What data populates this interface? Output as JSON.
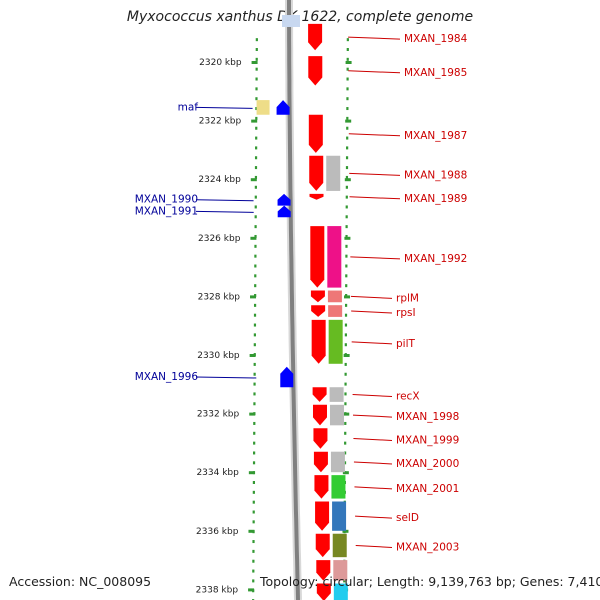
{
  "title": "Myxococcus xanthus DK 1622, complete genome",
  "footer": {
    "accession": "Accession: NC_008095",
    "topology": "Topology: circular; Length: 9,139,763 bp; Genes: 7,410"
  },
  "colors": {
    "backbone": "#808080",
    "ruler": "#339933",
    "reverse_gene": "#0000ff",
    "forward_gene": "#ff0000",
    "reverse_label": "#000099",
    "forward_label": "#cc0000"
  },
  "scale": {
    "unit": "kbp",
    "ticks": [
      2320,
      2322,
      2324,
      2326,
      2328,
      2330,
      2332,
      2334,
      2336,
      2338
    ],
    "tick_labels": [
      "2320 kbp",
      "2322 kbp",
      "2324 kbp",
      "2326 kbp",
      "2328 kbp",
      "2330 kbp",
      "2332 kbp",
      "2334 kbp",
      "2336 kbp",
      "2338 kbp"
    ]
  },
  "forward_genes": [
    {
      "label": "MXAN_1984",
      "start": 2318.7,
      "end": 2319.6,
      "cog_color": null
    },
    {
      "label": "MXAN_1985",
      "start": 2319.8,
      "end": 2320.8,
      "cog_color": null
    },
    {
      "label": "MXAN_1987",
      "start": 2321.8,
      "end": 2323.1,
      "cog_color": null
    },
    {
      "label": "MXAN_1988",
      "start": 2323.2,
      "end": 2324.4,
      "cog_color": "#bbbbbb"
    },
    {
      "label": "MXAN_1989",
      "start": 2324.5,
      "end": 2324.7,
      "cog_color": null
    },
    {
      "label": "MXAN_1992",
      "start": 2325.6,
      "end": 2327.7,
      "cog_color": "#ee1188"
    },
    {
      "label": "rplM",
      "start": 2327.8,
      "end": 2328.2,
      "cog_color": "#ee7777"
    },
    {
      "label": "rpsI",
      "start": 2328.3,
      "end": 2328.7,
      "cog_color": "#ee7777"
    },
    {
      "label": "pilT",
      "start": 2328.8,
      "end": 2330.3,
      "cog_color": "#66bb22"
    },
    {
      "label": "recX",
      "start": 2331.1,
      "end": 2331.6,
      "cog_color": "#bbbbbb"
    },
    {
      "label": "MXAN_1998",
      "start": 2331.7,
      "end": 2332.4,
      "cog_color": "#bbbbbb"
    },
    {
      "label": "MXAN_1999",
      "start": 2332.5,
      "end": 2333.2,
      "cog_color": null
    },
    {
      "label": "MXAN_2000",
      "start": 2333.3,
      "end": 2334.0,
      "cog_color": "#bbbbbb"
    },
    {
      "label": "MXAN_2001",
      "start": 2334.1,
      "end": 2334.9,
      "cog_color": "#33cc33"
    },
    {
      "label": "selD",
      "start": 2335.0,
      "end": 2336.0,
      "cog_color": "#3377bb"
    },
    {
      "label": "MXAN_2003",
      "start": 2336.1,
      "end": 2336.9,
      "cog_color": "#778822"
    },
    {
      "label": "",
      "start": 2337.0,
      "end": 2337.7,
      "cog_color": "#dd9999"
    },
    {
      "label": "",
      "start": 2337.8,
      "end": 2338.4,
      "cog_color": "#22ccee"
    }
  ],
  "reverse_genes": [
    {
      "label": "maf",
      "start": 2321.3,
      "end": 2321.8,
      "cog_color": "#eedd88"
    },
    {
      "label": "MXAN_1990",
      "start": 2324.5,
      "end": 2324.9,
      "cog_color": null
    },
    {
      "label": "MXAN_1991",
      "start": 2324.9,
      "end": 2325.3,
      "cog_color": null
    },
    {
      "label": "MXAN_1996",
      "start": 2330.4,
      "end": 2331.1,
      "cog_color": null
    }
  ]
}
